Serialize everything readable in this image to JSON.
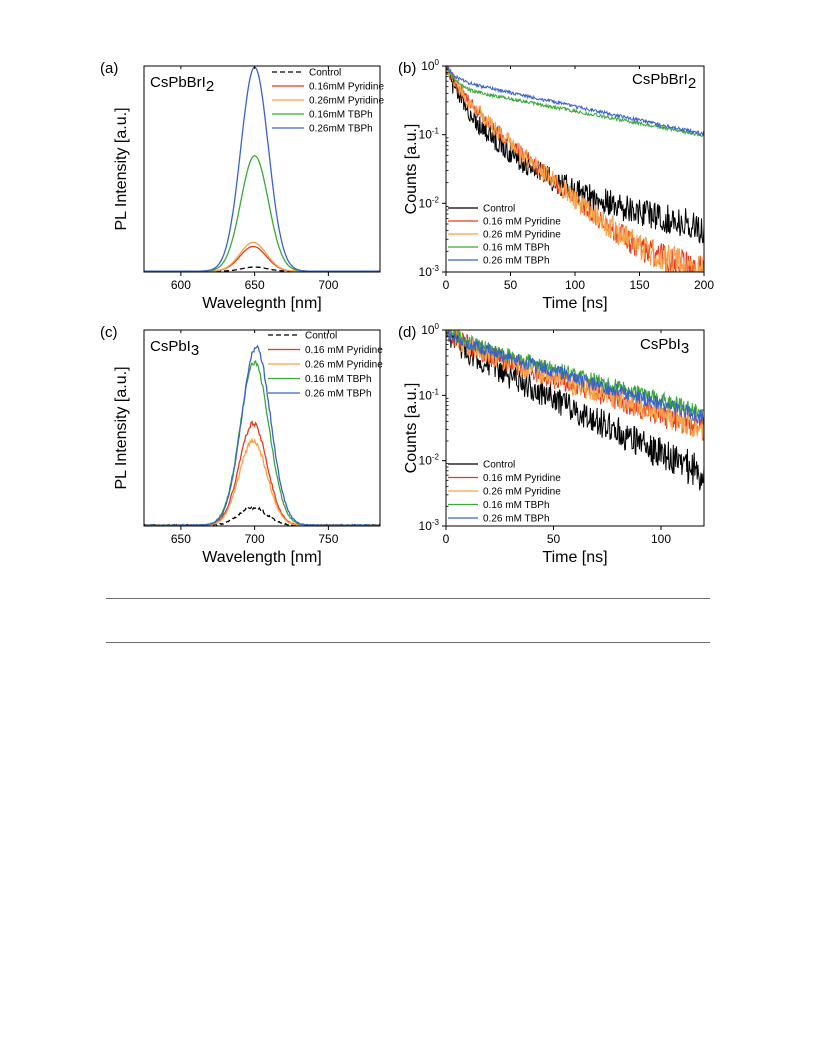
{
  "chart_data": [
    {
      "panel": "(a)",
      "compound": {
        "base": "CsPbBrI",
        "sub": "2"
      },
      "type": "line",
      "xlabel": "Wavelegnth [nm]",
      "ylabel": "PL Intensity [a.u.]",
      "xlim": [
        575,
        735
      ],
      "ylim": [
        0,
        1.0
      ],
      "xticks": [
        "600",
        "650",
        "700"
      ],
      "xtick_values": [
        600,
        650,
        700
      ],
      "legend_position": "top-right",
      "series": [
        {
          "name": "Control",
          "color": "#000000",
          "dash": true,
          "peak": 650,
          "width": 20,
          "amplitude": 0.02,
          "noise": 0
        },
        {
          "name": "0.16mM Pyridine",
          "color": "#e03c1f",
          "dash": false,
          "peak": 649,
          "width": 21,
          "amplitude": 0.12,
          "noise": 0
        },
        {
          "name": "0.26mM Pyridine",
          "color": "#f5a24a",
          "dash": false,
          "peak": 649,
          "width": 21,
          "amplitude": 0.14,
          "noise": 0
        },
        {
          "name": "0.16mM TBPh",
          "color": "#3aa83a",
          "dash": false,
          "peak": 650,
          "width": 22,
          "amplitude": 0.56,
          "noise": 0
        },
        {
          "name": "0.26mM TBPh",
          "color": "#3a63c8",
          "dash": false,
          "peak": 650,
          "width": 22,
          "amplitude": 0.99,
          "noise": 0
        }
      ]
    },
    {
      "panel": "(b)",
      "compound": {
        "base": "CsPbBrI",
        "sub": "2"
      },
      "type": "line",
      "yscale": "log",
      "xlabel": "Time [ns]",
      "ylabel": "Counts [a.u.]",
      "xlim": [
        0,
        200
      ],
      "ylim": [
        0.001,
        1
      ],
      "xticks": [
        "0",
        "50",
        "100",
        "150",
        "200"
      ],
      "xtick_values": [
        0,
        50,
        100,
        150,
        200
      ],
      "yticks": [
        {
          "base": "10",
          "exp": "0",
          "value": 1
        },
        {
          "base": "10",
          "exp": "-1",
          "value": 0.1
        },
        {
          "base": "10",
          "exp": "-2",
          "value": 0.01
        },
        {
          "base": "10",
          "exp": "-3",
          "value": 0.001
        }
      ],
      "legend_position": "bottom-left",
      "series": [
        {
          "name": "Control",
          "color": "#000000",
          "components": [
            [
              0.55,
              5
            ],
            [
              0.4,
              19
            ],
            [
              0.05,
              70
            ]
          ],
          "floor": 0.0015,
          "noise": 0.3
        },
        {
          "name": "0.16 mM Pyridine",
          "color": "#e03c1f",
          "components": [
            [
              0.5,
              8
            ],
            [
              0.5,
              26
            ]
          ],
          "floor": 0.0008,
          "noise": 0.22
        },
        {
          "name": "0.26 mM Pyridine",
          "color": "#f5a24a",
          "components": [
            [
              0.5,
              8
            ],
            [
              0.5,
              26
            ]
          ],
          "floor": 0.0008,
          "noise": 0.24
        },
        {
          "name": "0.16 mM TBPh",
          "color": "#3aa83a",
          "components": [
            [
              0.5,
              6
            ],
            [
              0.5,
              122
            ]
          ],
          "floor": 0,
          "noise": 0.05
        },
        {
          "name": "0.26 mM TBPh",
          "color": "#3a63c8",
          "components": [
            [
              0.35,
              6
            ],
            [
              0.65,
              108
            ]
          ],
          "floor": 0,
          "noise": 0.05
        }
      ]
    },
    {
      "panel": "(c)",
      "compound": {
        "base": "CsPbI",
        "sub": "3"
      },
      "type": "line",
      "xlabel": "Wavelength [nm]",
      "ylabel": "PL Intensity [a.u.]",
      "xlim": [
        625,
        785
      ],
      "ylim": [
        0,
        1.0
      ],
      "xticks": [
        "650",
        "700",
        "750"
      ],
      "xtick_values": [
        650,
        700,
        750
      ],
      "legend_position": "top-right",
      "series": [
        {
          "name": "Control",
          "color": "#000000",
          "dash": true,
          "peak": 699,
          "width": 22,
          "amplitude": 0.09,
          "noise": 0.008
        },
        {
          "name": "0.16 mM Pyridine",
          "color": "#e03c1f",
          "dash": false,
          "peak": 699,
          "width": 22,
          "amplitude": 0.52,
          "noise": 0.012
        },
        {
          "name": "0.26 mM Pyridine",
          "color": "#f5a24a",
          "dash": false,
          "peak": 699,
          "width": 22,
          "amplitude": 0.43,
          "noise": 0.012
        },
        {
          "name": "0.16 mM TBPh",
          "color": "#3aa83a",
          "dash": false,
          "peak": 700,
          "width": 23,
          "amplitude": 0.83,
          "noise": 0.015
        },
        {
          "name": "0.26 mM TBPh",
          "color": "#3a63c8",
          "dash": false,
          "peak": 701,
          "width": 23,
          "amplitude": 0.91,
          "noise": 0.015
        }
      ]
    },
    {
      "panel": "(d)",
      "compound": {
        "base": "CsPbI",
        "sub": "3"
      },
      "type": "line",
      "yscale": "log",
      "xlabel": "Time [ns]",
      "ylabel": "Counts [a.u.]",
      "xlim": [
        0,
        120
      ],
      "ylim": [
        0.001,
        1
      ],
      "xticks": [
        "0",
        "50",
        "100"
      ],
      "xtick_values": [
        0,
        50,
        100
      ],
      "yticks": [
        {
          "base": "10",
          "exp": "0",
          "value": 1
        },
        {
          "base": "10",
          "exp": "-1",
          "value": 0.1
        },
        {
          "base": "10",
          "exp": "-2",
          "value": 0.01
        },
        {
          "base": "10",
          "exp": "-3",
          "value": 0.001
        }
      ],
      "legend_position": "bottom-left",
      "series": [
        {
          "name": "Control",
          "color": "#000000",
          "components": [
            [
              0.4,
              5
            ],
            [
              0.6,
              26
            ]
          ],
          "floor": 0.0003,
          "noise": 0.4
        },
        {
          "name": "0.16 mM Pyridine",
          "color": "#e03c1f",
          "components": [
            [
              0.3,
              5
            ],
            [
              0.7,
              38
            ]
          ],
          "floor": 0.0004,
          "noise": 0.35
        },
        {
          "name": "0.26 mM Pyridine",
          "color": "#f5a24a",
          "components": [
            [
              0.3,
              5
            ],
            [
              0.7,
              38
            ]
          ],
          "floor": 0.0004,
          "noise": 0.35
        },
        {
          "name": "0.16 mM TBPh",
          "color": "#3aa83a",
          "components": [
            [
              0.2,
              6
            ],
            [
              0.8,
              45
            ]
          ],
          "floor": 0,
          "noise": 0.22
        },
        {
          "name": "0.26 mM TBPh",
          "color": "#3a63c8",
          "components": [
            [
              0.25,
              6
            ],
            [
              0.75,
              43
            ]
          ],
          "floor": 0,
          "noise": 0.22
        }
      ]
    }
  ]
}
